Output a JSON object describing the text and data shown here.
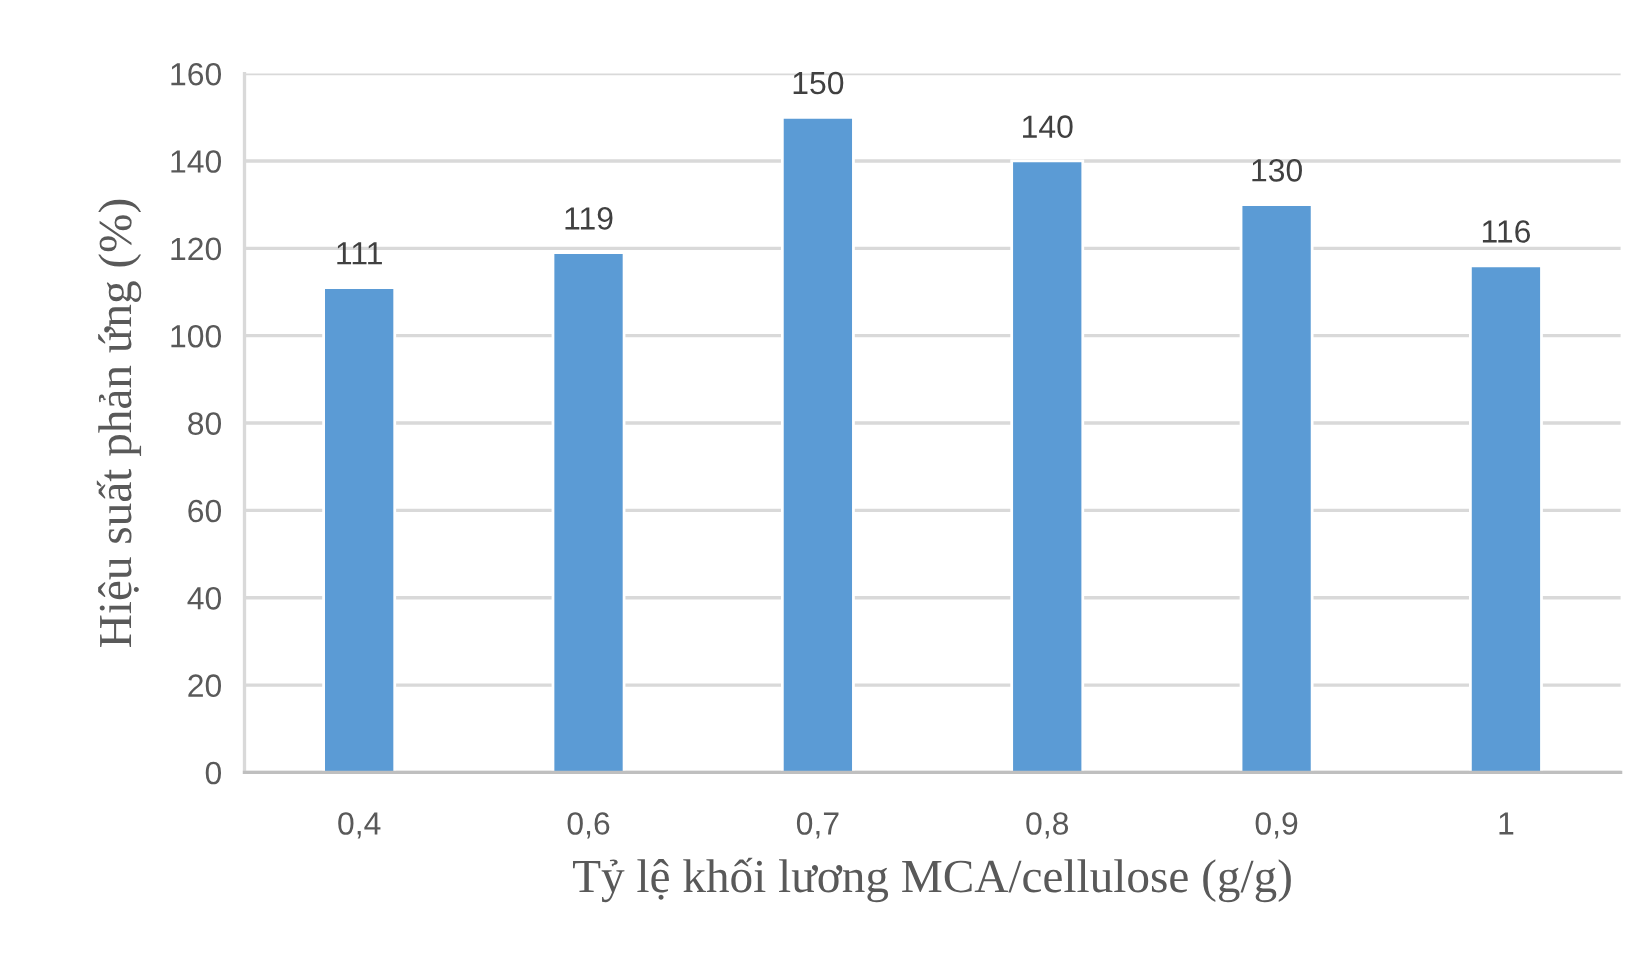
{
  "chart_data": {
    "type": "bar",
    "xlabel": "Tỷ lệ khối lương MCA/cellulose (g/g)",
    "ylabel": "Hiệu suất phản ứng (%)",
    "categories": [
      "0,4",
      "0,6",
      "0,7",
      "0,8",
      "0,9",
      "1"
    ],
    "values": [
      111,
      119,
      150,
      140,
      130,
      116
    ],
    "color": "#5b9bd5",
    "ylim": [
      0,
      160
    ],
    "yticks": [
      0,
      20,
      40,
      60,
      80,
      100,
      120,
      140,
      160
    ],
    "grid": "y",
    "data_labels": true
  }
}
